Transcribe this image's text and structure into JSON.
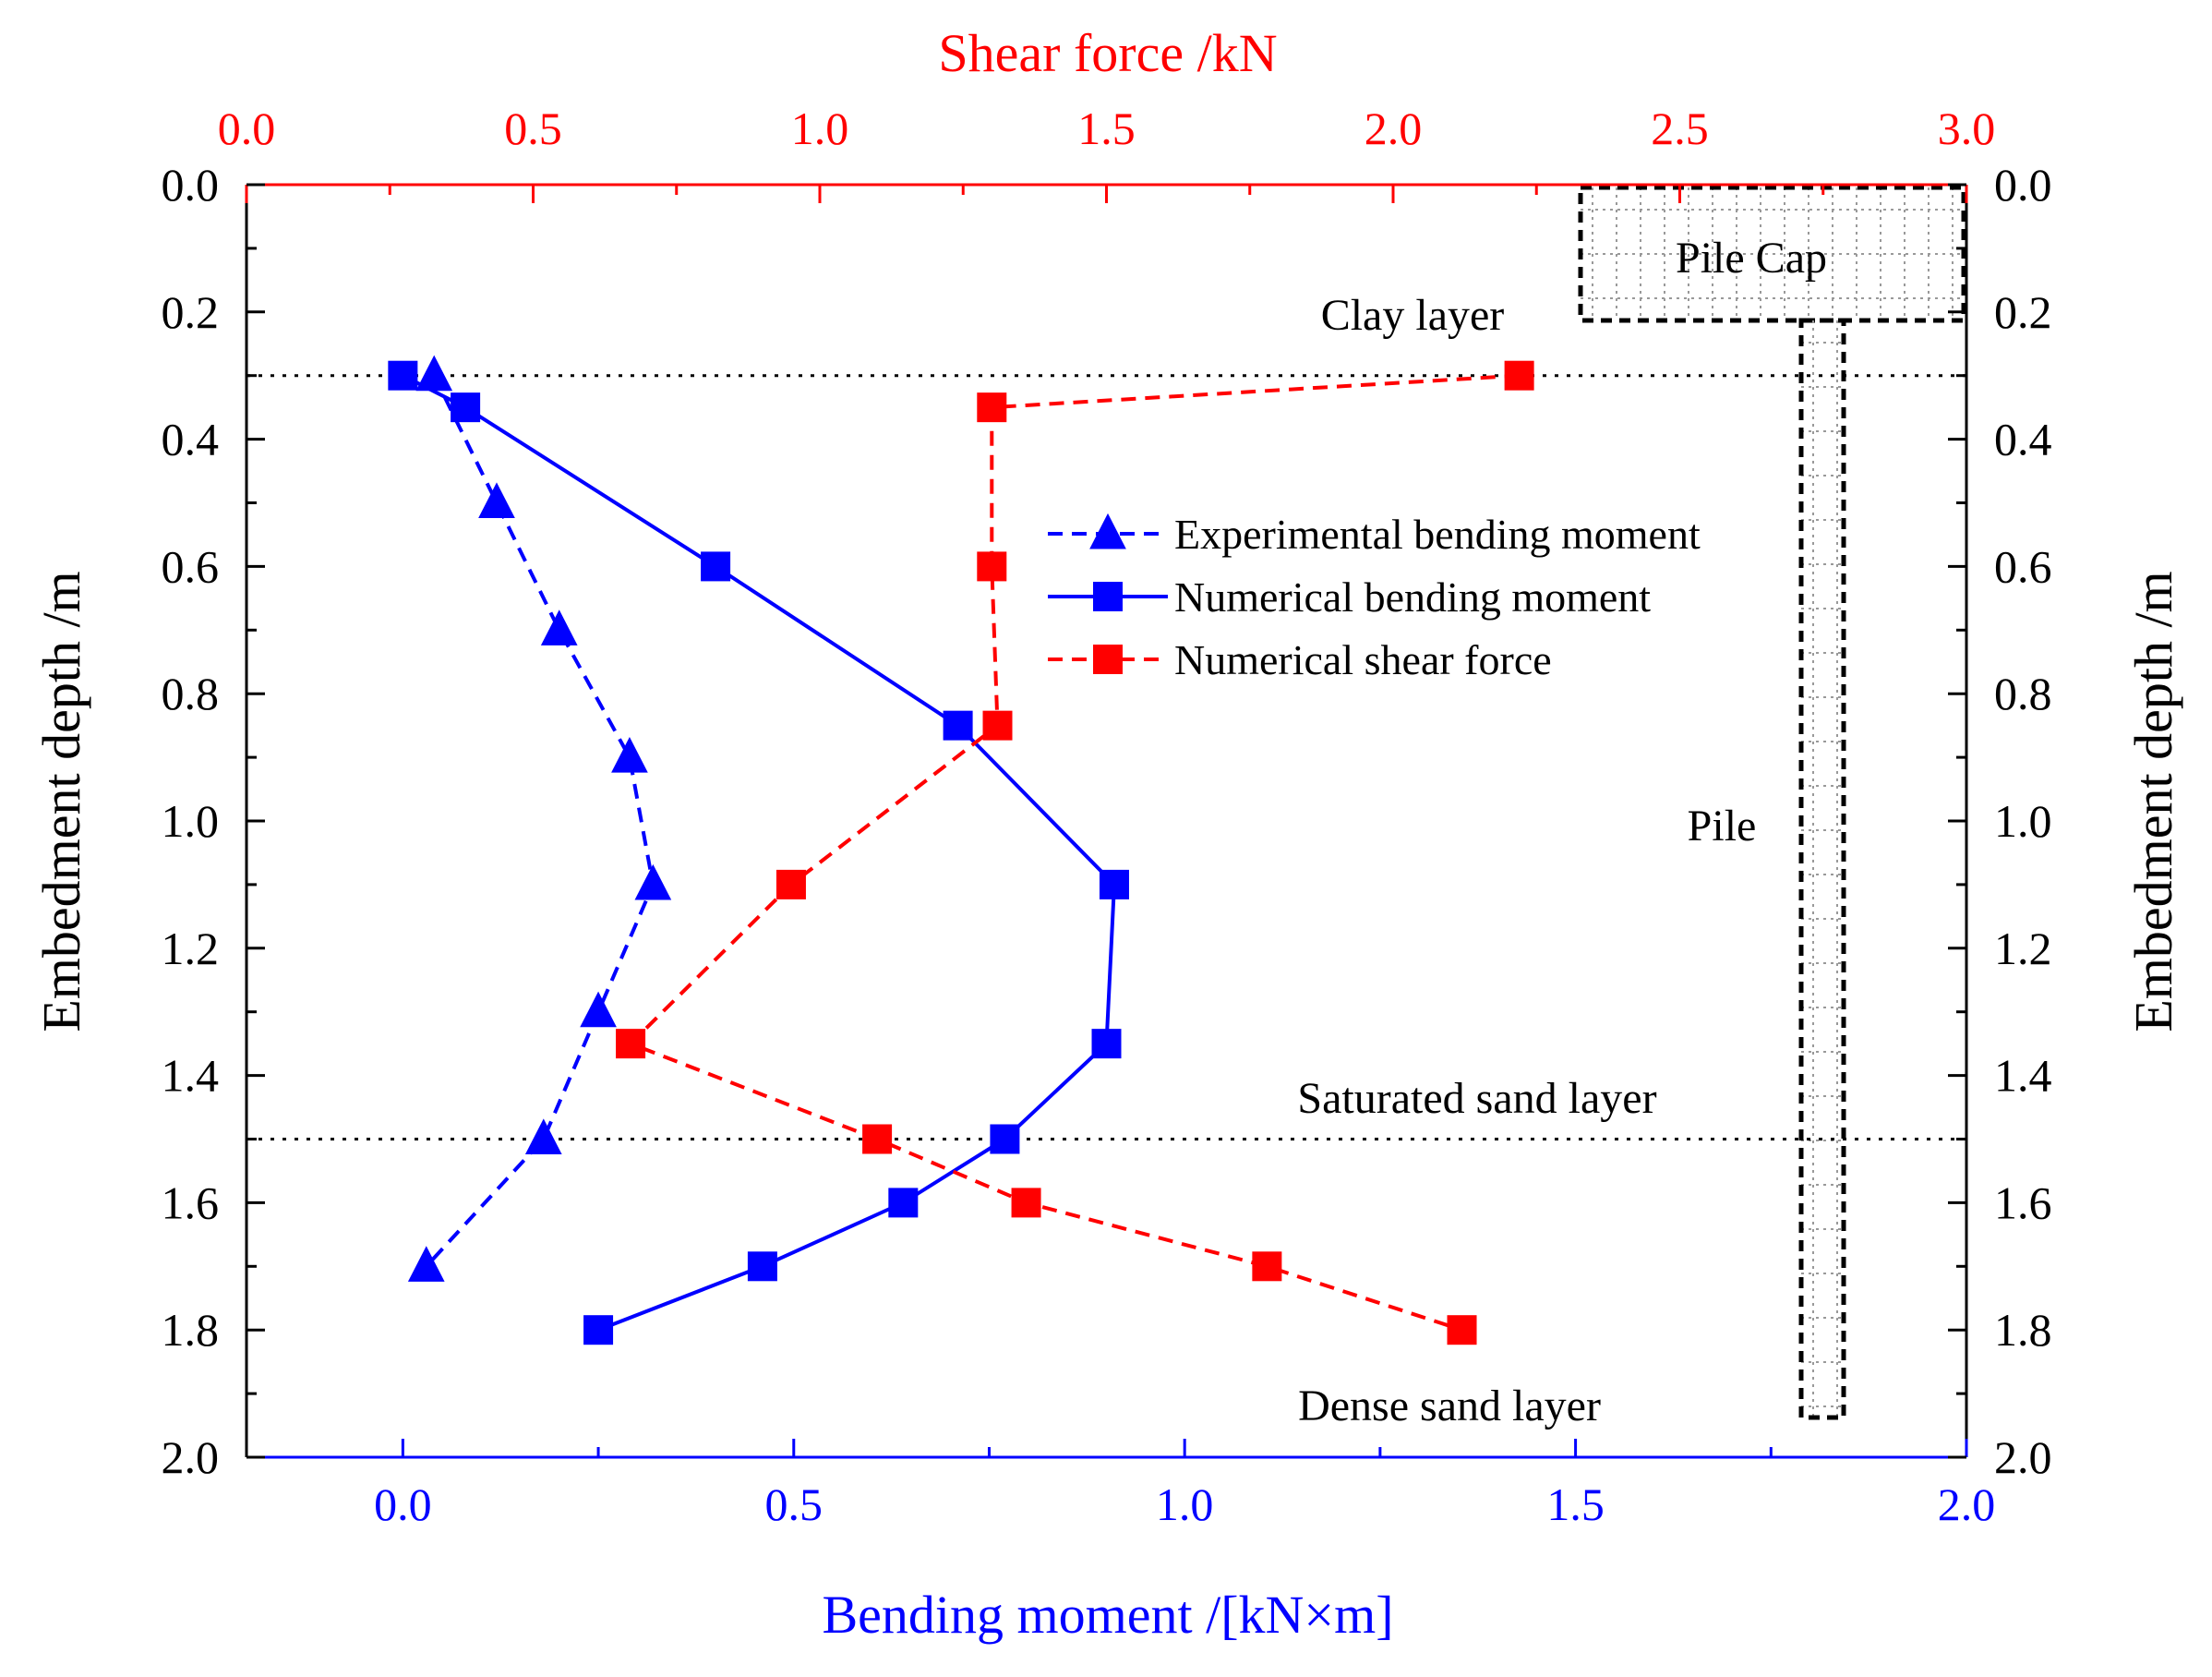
{
  "chart_data": {
    "type": "line",
    "title": "",
    "x_bottom": {
      "label": "Bending moment /[kN×m]",
      "range": [
        -0.2,
        2.0
      ],
      "ticks": [
        0.0,
        0.5,
        1.0,
        1.5,
        2.0
      ],
      "tick_labels": [
        "0.0",
        "0.5",
        "1.0",
        "1.5",
        "2.0"
      ],
      "color": "#0000ff"
    },
    "x_top": {
      "label": "Shear force /kN",
      "range": [
        0.0,
        3.0
      ],
      "ticks": [
        0.0,
        0.5,
        1.0,
        1.5,
        2.0,
        2.5,
        3.0
      ],
      "tick_labels": [
        "0.0",
        "0.5",
        "1.0",
        "1.5",
        "2.0",
        "2.5",
        "3.0"
      ],
      "color": "#ff0000"
    },
    "y_left": {
      "label": "Embedment depth /m",
      "range": [
        0.0,
        2.0
      ],
      "inverted": true,
      "ticks": [
        0.0,
        0.2,
        0.4,
        0.6,
        0.8,
        1.0,
        1.2,
        1.4,
        1.6,
        1.8,
        2.0
      ],
      "tick_labels": [
        "0.0",
        "0.2",
        "0.4",
        "0.6",
        "0.8",
        "1.0",
        "1.2",
        "1.4",
        "1.6",
        "1.8",
        "2.0"
      ]
    },
    "y_right": {
      "label": "Embedment depth /m",
      "ticks": [
        0.0,
        0.2,
        0.4,
        0.6,
        0.8,
        1.0,
        1.2,
        1.4,
        1.6,
        1.8,
        2.0
      ],
      "tick_labels": [
        "0.0",
        "0.2",
        "0.4",
        "0.6",
        "0.8",
        "1.0",
        "1.2",
        "1.4",
        "1.6",
        "1.8",
        "2.0"
      ]
    },
    "series": [
      {
        "name": "Experimental bending moment",
        "axis": "bottom",
        "color": "#0000ff",
        "marker": "triangle",
        "line": "dashed",
        "points": [
          [
            0.04,
            0.3
          ],
          [
            0.12,
            0.5
          ],
          [
            0.2,
            0.7
          ],
          [
            0.29,
            0.9
          ],
          [
            0.32,
            1.1
          ],
          [
            0.25,
            1.3
          ],
          [
            0.18,
            1.5
          ],
          [
            0.03,
            1.7
          ]
        ]
      },
      {
        "name": "Numerical bending moment",
        "axis": "bottom",
        "color": "#0000ff",
        "marker": "square",
        "line": "solid",
        "points": [
          [
            0.0,
            0.3
          ],
          [
            0.08,
            0.35
          ],
          [
            0.4,
            0.6
          ],
          [
            0.71,
            0.85
          ],
          [
            0.91,
            1.1
          ],
          [
            0.9,
            1.35
          ],
          [
            0.77,
            1.5
          ],
          [
            0.64,
            1.6
          ],
          [
            0.46,
            1.7
          ],
          [
            0.25,
            1.8
          ]
        ]
      },
      {
        "name": "Numerical shear force",
        "axis": "top",
        "color": "#ff0000",
        "marker": "square",
        "line": "dashed",
        "points": [
          [
            2.22,
            0.3
          ],
          [
            1.3,
            0.35
          ],
          [
            1.3,
            0.6
          ],
          [
            1.31,
            0.85
          ],
          [
            0.95,
            1.1
          ],
          [
            0.67,
            1.35
          ],
          [
            1.1,
            1.5
          ],
          [
            1.36,
            1.6
          ],
          [
            1.78,
            1.7
          ],
          [
            2.12,
            1.8
          ]
        ]
      }
    ],
    "layer_boundaries": [
      0.3,
      1.5
    ],
    "annotations": {
      "clay": "Clay layer",
      "saturated": "Saturated sand layer",
      "dense": "Dense sand layer",
      "pile_cap": "Pile Cap",
      "pile": "Pile"
    },
    "legend_position": "upper-right"
  }
}
